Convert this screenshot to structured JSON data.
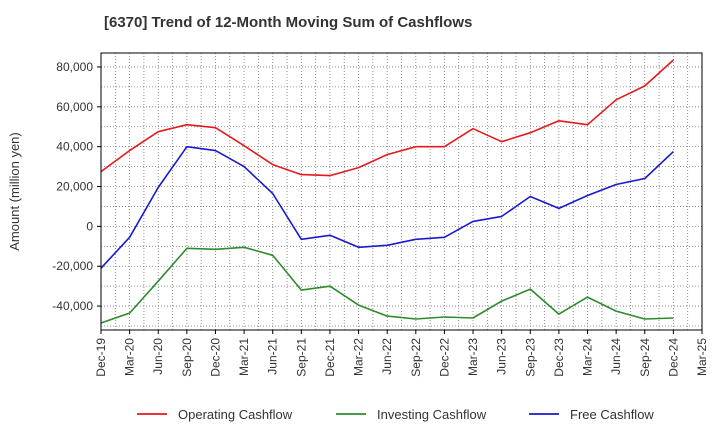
{
  "chart_data": {
    "type": "line",
    "title": "[6370]  Trend of 12-Month Moving Sum of Cashflows",
    "xlabel": "",
    "ylabel": "Amount (million yen)",
    "ylim": [
      -52000,
      87000
    ],
    "yticks": [
      -40000,
      -20000,
      0,
      20000,
      40000,
      60000,
      80000
    ],
    "ytick_labels": [
      "-40,000",
      "-20,000",
      "0",
      "20,000",
      "40,000",
      "60,000",
      "80,000"
    ],
    "categories": [
      "Dec-19",
      "Mar-20",
      "Jun-20",
      "Sep-20",
      "Dec-20",
      "Mar-21",
      "Jun-21",
      "Sep-21",
      "Dec-21",
      "Mar-22",
      "Jun-22",
      "Sep-22",
      "Dec-22",
      "Mar-23",
      "Jun-23",
      "Sep-23",
      "Dec-23",
      "Mar-24",
      "Jun-24",
      "Sep-24",
      "Dec-24",
      "Mar-25"
    ],
    "grid": true,
    "legend_position": "bottom",
    "series": [
      {
        "name": "Operating Cashflow",
        "color": "#e41a1c",
        "values": [
          27500,
          38000,
          47500,
          51000,
          49500,
          40500,
          31000,
          26000,
          25500,
          29500,
          36000,
          40000,
          40000,
          49000,
          42500,
          47000,
          53000,
          51000,
          63500,
          70500,
          83500,
          null
        ]
      },
      {
        "name": "Investing Cashflow",
        "color": "#2e8b2e",
        "values": [
          -48500,
          -43500,
          -27500,
          -11000,
          -11500,
          -10500,
          -14500,
          -32000,
          -30000,
          -39500,
          -45000,
          -46500,
          -45500,
          -46000,
          -37500,
          -31500,
          -44000,
          -35500,
          -42500,
          -46500,
          -46000,
          null
        ]
      },
      {
        "name": "Free Cashflow",
        "color": "#1a1acd",
        "values": [
          -21000,
          -5500,
          19500,
          40000,
          38000,
          30000,
          16500,
          -6500,
          -4500,
          -10500,
          -9500,
          -6500,
          -5500,
          2500,
          5000,
          15000,
          9000,
          15500,
          21000,
          24000,
          37500,
          null
        ]
      }
    ]
  }
}
